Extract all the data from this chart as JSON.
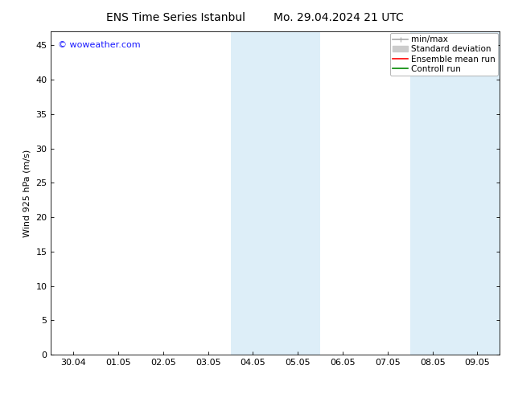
{
  "title_left": "ENS Time Series Istanbul",
  "title_right": "Mo. 29.04.2024 21 UTC",
  "ylabel": "Wind 925 hPa (m/s)",
  "watermark": "© woweather.com",
  "watermark_color": "#1a1aff",
  "bg_color": "#ffffff",
  "plot_bg_color": "#ffffff",
  "shade_color": "#ddeef8",
  "xtick_labels": [
    "30.04",
    "01.05",
    "02.05",
    "03.05",
    "04.05",
    "05.05",
    "06.05",
    "07.05",
    "08.05",
    "09.05"
  ],
  "xtick_positions": [
    0,
    1,
    2,
    3,
    4,
    5,
    6,
    7,
    8,
    9
  ],
  "ytick_positions": [
    0,
    5,
    10,
    15,
    20,
    25,
    30,
    35,
    40,
    45
  ],
  "ylim": [
    0,
    47
  ],
  "xlim_min": -0.5,
  "xlim_max": 9.5,
  "shaded_bands": [
    {
      "xmin": 3.5,
      "xmax": 5.5
    },
    {
      "xmin": 7.5,
      "xmax": 9.5
    }
  ],
  "legend_entries": [
    {
      "label": "min/max",
      "color": "#aaaaaa",
      "lw": 1.2
    },
    {
      "label": "Standard deviation",
      "color": "#cccccc",
      "lw": 6
    },
    {
      "label": "Ensemble mean run",
      "color": "#ff0000",
      "lw": 1.2
    },
    {
      "label": "Controll run",
      "color": "#008800",
      "lw": 1.2
    }
  ],
  "title_fontsize": 10,
  "axis_fontsize": 8,
  "tick_fontsize": 8,
  "legend_fontsize": 7.5
}
